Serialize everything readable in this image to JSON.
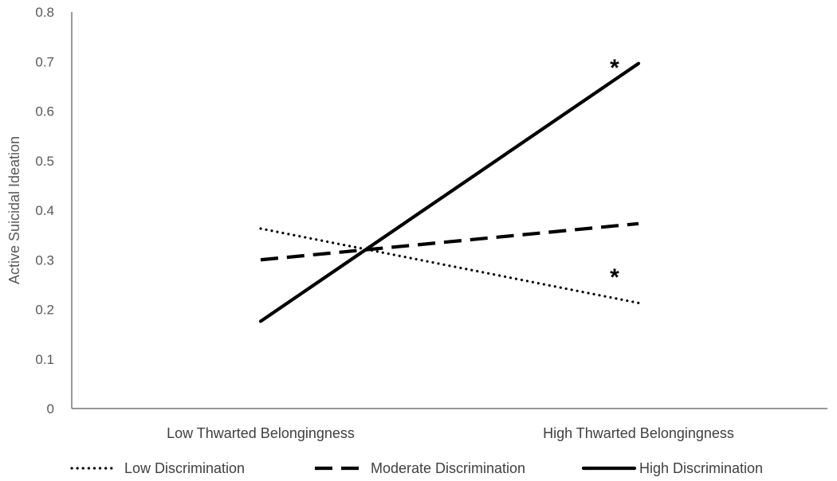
{
  "chart_data": {
    "type": "line",
    "title": "",
    "xlabel": "",
    "ylabel": "Active Suicidal Ideation",
    "ylim": [
      0,
      0.8
    ],
    "yticks": [
      "0",
      "0.1",
      "0.2",
      "0.3",
      "0.4",
      "0.5",
      "0.6",
      "0.7",
      "0.8"
    ],
    "categories": [
      "Low Thwarted Belongingness",
      "High Thwarted Belongingness"
    ],
    "grid": false,
    "legend_position": "bottom",
    "series": [
      {
        "name": "Low Discrimination",
        "values": [
          0.363,
          0.213
        ],
        "style": "dotted",
        "color": "#000000",
        "annotation": "*"
      },
      {
        "name": "Moderate Discrimination",
        "values": [
          0.3,
          0.373
        ],
        "style": "dashed",
        "color": "#000000",
        "annotation": ""
      },
      {
        "name": "High Discrimination",
        "values": [
          0.176,
          0.696
        ],
        "style": "solid",
        "color": "#000000",
        "annotation": "*"
      }
    ]
  }
}
